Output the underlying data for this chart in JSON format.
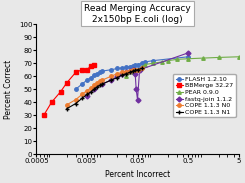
{
  "title": "Read Merging Accuracy\n2x150bp E.coli (log)",
  "xlabel": "Percent Incorrect",
  "ylabel": "Percent Correct",
  "xscale": "log",
  "xlim": [
    0.0005,
    5
  ],
  "ylim": [
    0,
    100
  ],
  "yticks": [
    0,
    10,
    20,
    30,
    40,
    50,
    60,
    70,
    80,
    90,
    100
  ],
  "xticks": [
    0.0005,
    0.005,
    0.05,
    0.5,
    5
  ],
  "xtick_labels": [
    "0.0005",
    "0.005",
    "0.05",
    "0.5",
    "5"
  ],
  "series": [
    {
      "label": "FLASH 1.2.10",
      "color": "#4472C4",
      "marker": "o",
      "x": [
        0.003,
        0.004,
        0.005,
        0.006,
        0.007,
        0.008,
        0.009,
        0.01,
        0.015,
        0.02,
        0.025,
        0.03,
        0.035,
        0.04,
        0.045,
        0.05,
        0.06,
        0.07,
        0.1,
        0.5
      ],
      "y": [
        50,
        54,
        57,
        59,
        61,
        62,
        63,
        64,
        65,
        66,
        66.5,
        67,
        67.5,
        68,
        68.5,
        69,
        70,
        71,
        72,
        75
      ]
    },
    {
      "label": "BBMerge 32.27",
      "color": "#FF0000",
      "marker": "s",
      "x": [
        0.0007,
        0.001,
        0.0015,
        0.002,
        0.003,
        0.004,
        0.005,
        0.006,
        0.007
      ],
      "y": [
        30,
        40,
        48,
        55,
        63,
        65,
        65,
        68,
        69
      ]
    },
    {
      "label": "PEAR 0.9.0",
      "color": "#70AD47",
      "marker": "^",
      "x": [
        0.03,
        0.04,
        0.05,
        0.06,
        0.07,
        0.1,
        0.15,
        0.2,
        0.3,
        0.5,
        1,
        2,
        5
      ],
      "y": [
        60,
        63,
        65,
        67,
        69,
        70,
        71,
        72,
        73,
        73.5,
        74,
        74.5,
        75
      ]
    },
    {
      "label": "fastq-join 1.1.2",
      "color": "#7030A0",
      "marker": "D",
      "x": [
        0.005,
        0.007,
        0.01,
        0.015,
        0.02,
        0.025,
        0.03,
        0.035,
        0.04,
        0.043,
        0.045,
        0.047,
        0.05,
        0.055,
        0.5
      ],
      "y": [
        45,
        50,
        54,
        57,
        60,
        62,
        63,
        64,
        65,
        65,
        62,
        50,
        42,
        65,
        78
      ]
    },
    {
      "label": "COPE 1.1.3 N0",
      "color": "#ED7D31",
      "marker": "o",
      "x": [
        0.002,
        0.003,
        0.004,
        0.005,
        0.006,
        0.007,
        0.008,
        0.009,
        0.01,
        0.015,
        0.02,
        0.025,
        0.03,
        0.035,
        0.04,
        0.045,
        0.05,
        0.06
      ],
      "y": [
        38,
        42,
        46,
        49,
        51,
        53,
        55,
        56,
        57,
        60,
        62,
        63,
        63.5,
        64,
        64.5,
        65,
        65,
        66
      ]
    },
    {
      "label": "COPE 1.1.3 N1",
      "color": "#000000",
      "marker": "+",
      "x": [
        0.002,
        0.003,
        0.004,
        0.005,
        0.006,
        0.007,
        0.008,
        0.009,
        0.01,
        0.015,
        0.02,
        0.025,
        0.03,
        0.035,
        0.04,
        0.045,
        0.05,
        0.06
      ],
      "y": [
        35,
        39,
        43,
        46,
        48,
        50,
        52,
        53,
        54,
        57,
        59,
        61,
        62,
        63,
        64,
        64.5,
        65,
        66
      ]
    }
  ],
  "title_fontsize": 6.5,
  "label_fontsize": 5.5,
  "tick_fontsize": 5,
  "legend_fontsize": 4.5
}
